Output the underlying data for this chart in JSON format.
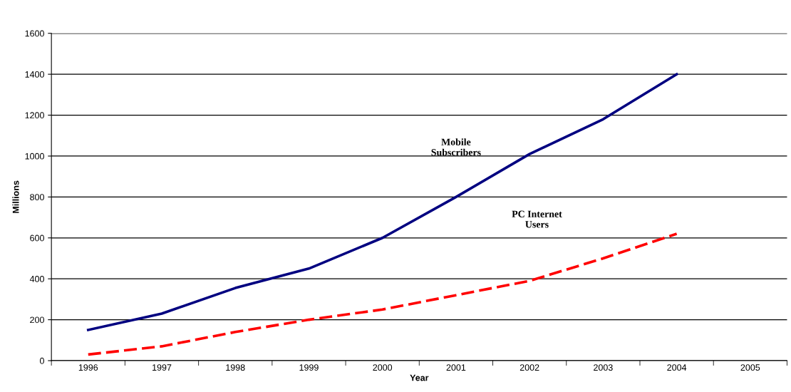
{
  "chart_data": {
    "type": "line",
    "xlabel": "Year",
    "ylabel": "Millions",
    "categories": [
      "1996",
      "1997",
      "1998",
      "1999",
      "2000",
      "2001",
      "2002",
      "2003",
      "2004",
      "2005"
    ],
    "series": [
      {
        "color": "#000080",
        "line_style": "solid",
        "values": [
          150,
          230,
          355,
          450,
          600,
          800,
          1010,
          1180,
          1400,
          null
        ]
      },
      {
        "color": "#ff0000",
        "line_style": "dashed",
        "values": [
          30,
          70,
          140,
          200,
          250,
          320,
          390,
          500,
          620,
          null
        ]
      }
    ],
    "ylim": [
      0,
      1600
    ],
    "yticks": [
      0,
      200,
      400,
      600,
      800,
      1000,
      1200,
      1400,
      1600
    ],
    "grid": "y",
    "marker": "none",
    "annotations": [
      "Mobile\nSubscribers",
      "PC Internet\nUsers"
    ]
  }
}
